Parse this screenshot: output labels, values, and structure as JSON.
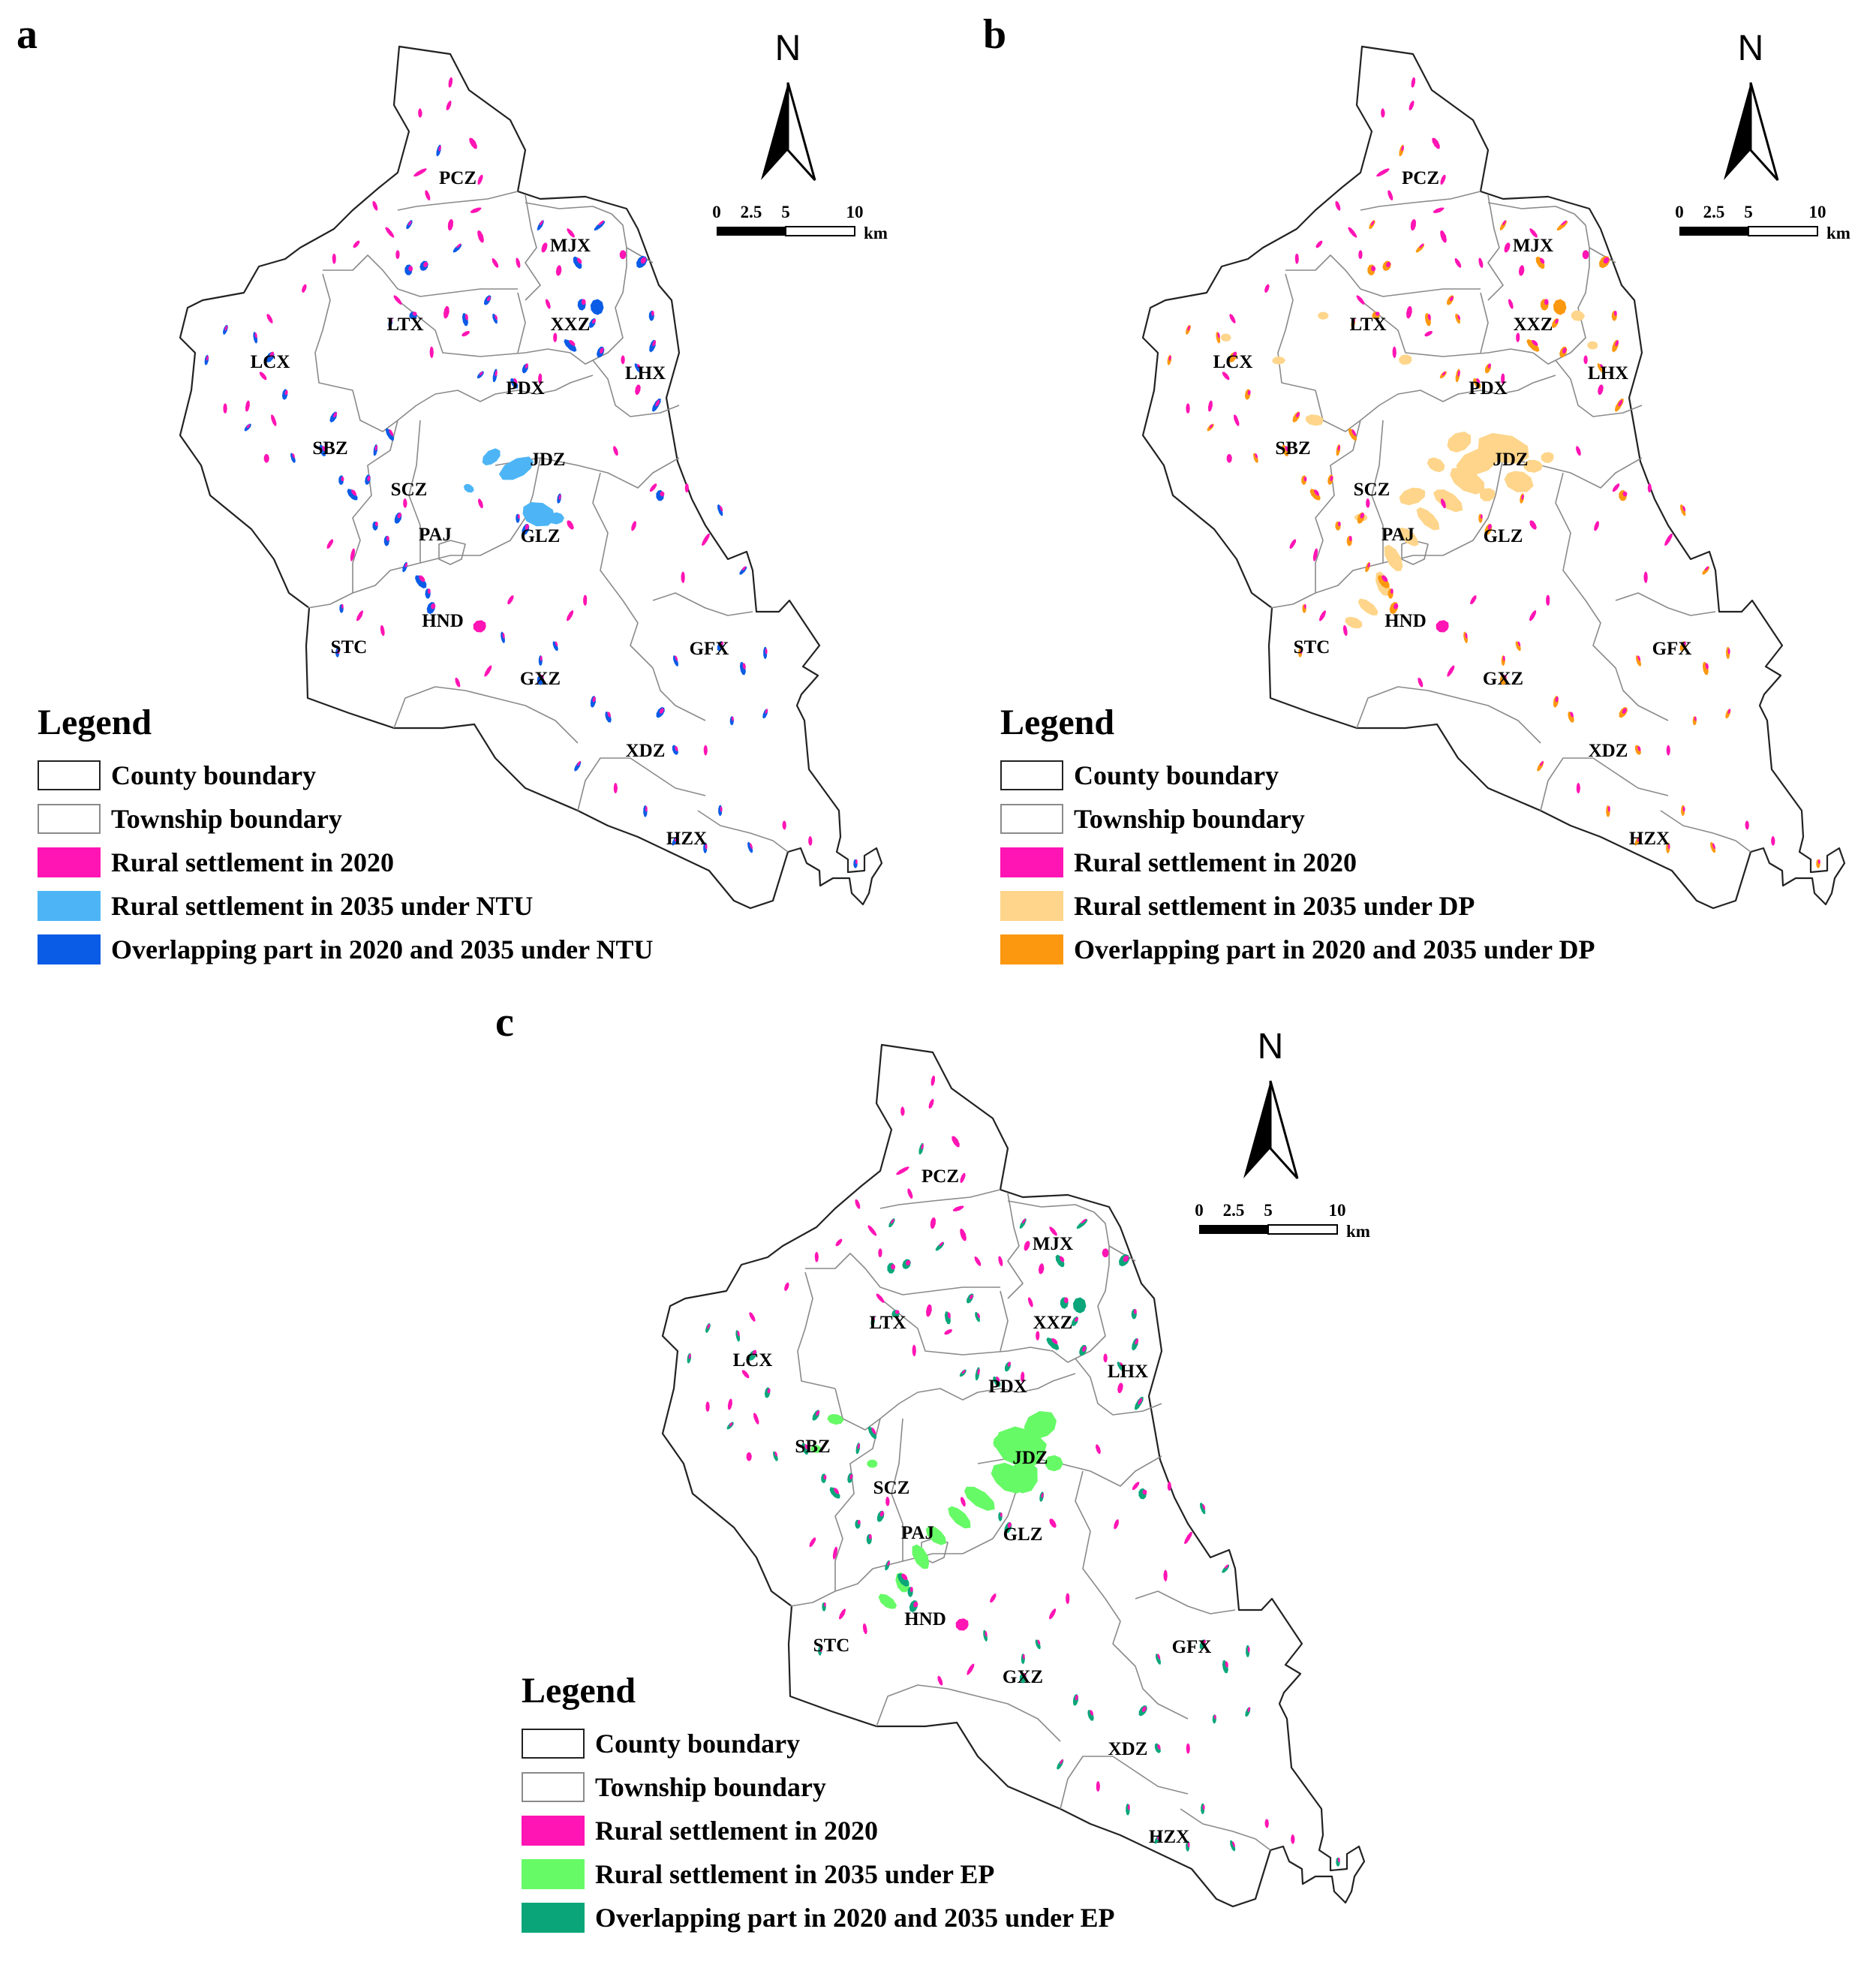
{
  "township_codes": [
    "PCZ",
    "MJX",
    "LTX",
    "XXZ",
    "LCX",
    "LHX",
    "PDX",
    "SBZ",
    "JDZ",
    "SCZ",
    "PAJ",
    "GLZ",
    "HND",
    "STC",
    "GFX",
    "GXZ",
    "XDZ",
    "HZX"
  ],
  "north_label": "N",
  "scale": {
    "ticks": [
      "0",
      "2.5",
      "5",
      "10"
    ],
    "unit": "km"
  },
  "legend_title": "Legend",
  "common_legend": {
    "county": "County boundary",
    "township": "Township boundary",
    "settlement_2020": "Rural settlement in 2020"
  },
  "colors": {
    "county_boundary": "#222222",
    "township_boundary": "#8a8a8a",
    "settlement_2020": "#ff14b4"
  },
  "panels": [
    {
      "letter": "a",
      "scenario": "NTU",
      "future_label": "Rural settlement in 2035 under NTU",
      "overlap_label": "Overlapping part in 2020 and 2035 under NTU",
      "future_color": "#4db5f5",
      "overlap_color": "#0a5be6"
    },
    {
      "letter": "b",
      "scenario": "DP",
      "future_label": "Rural settlement in 2035 under DP",
      "overlap_label": "Overlapping part in 2020 and 2035 under DP",
      "future_color": "#fed58a",
      "overlap_color": "#fb9810"
    },
    {
      "letter": "c",
      "scenario": "EP",
      "future_label": "Rural settlement in 2035 under EP",
      "overlap_label": "Overlapping part in 2020 and 2035 under EP",
      "future_color": "#66fa66",
      "overlap_color": "#0aa67a"
    }
  ]
}
